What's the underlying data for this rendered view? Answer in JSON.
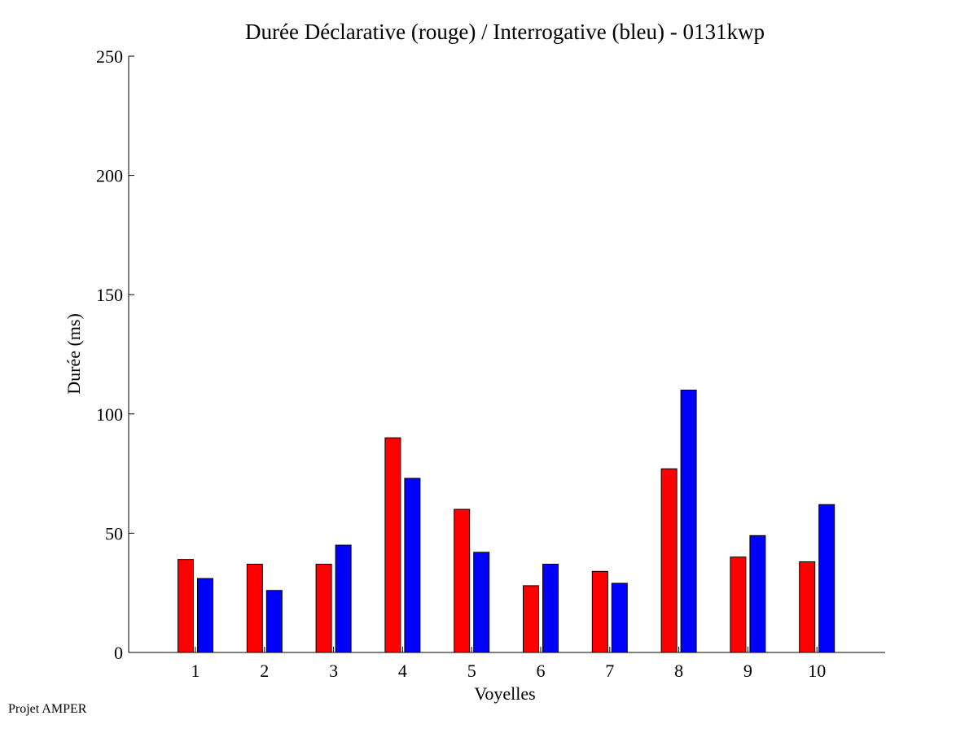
{
  "footer": {
    "text": "Projet AMPER"
  },
  "chart_data": {
    "type": "bar",
    "title": "Durée Déclarative (rouge) / Interrogative (bleu) - 0131kwp",
    "xlabel": "Voyelles",
    "ylabel": "Durée (ms)",
    "ylim": [
      0,
      250
    ],
    "yticks": [
      0,
      50,
      100,
      150,
      200,
      250
    ],
    "categories": [
      "1",
      "2",
      "3",
      "4",
      "5",
      "6",
      "7",
      "8",
      "9",
      "10"
    ],
    "series": [
      {
        "color": "#ff0000",
        "values": [
          39,
          37,
          37,
          90,
          60,
          28,
          34,
          77,
          40,
          38
        ]
      },
      {
        "color": "#0000ff",
        "values": [
          31,
          26,
          45,
          73,
          42,
          37,
          29,
          110,
          49,
          62
        ]
      }
    ],
    "grid": false,
    "legend": "none"
  }
}
